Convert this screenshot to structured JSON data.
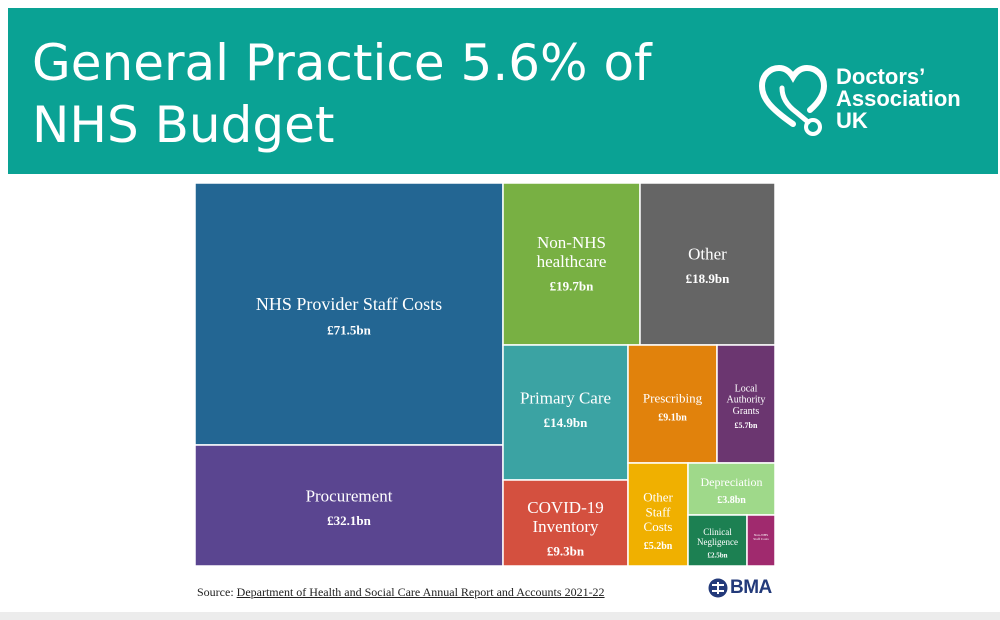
{
  "header": {
    "title_line1": "General Practice 5.6% of",
    "title_line2": "NHS Budget",
    "background": "#0aa294"
  },
  "logo": {
    "line1": "Doctors’",
    "line2": "Association",
    "line3": "UK",
    "icon": "heart-stethoscope-icon"
  },
  "chart_data": {
    "type": "treemap",
    "title": "",
    "unit": "£bn",
    "items": [
      {
        "label": "NHS Provider Staff Costs",
        "value": 71.5,
        "value_label": "£71.5bn",
        "color": "#236693"
      },
      {
        "label": "Procurement",
        "value": 32.1,
        "value_label": "£32.1bn",
        "color": "#5a4590"
      },
      {
        "label": "Non-NHS healthcare",
        "value": 19.7,
        "value_label": "£19.7bn",
        "color": "#78b043"
      },
      {
        "label": "Other",
        "value": 18.9,
        "value_label": "£18.9bn",
        "color": "#656565"
      },
      {
        "label": "Primary Care",
        "value": 14.9,
        "value_label": "£14.9bn",
        "color": "#3ba3a3"
      },
      {
        "label": "COVID-19 Inventory",
        "value": 9.3,
        "value_label": "£9.3bn",
        "color": "#d4503f"
      },
      {
        "label": "Prescribing",
        "value": 9.1,
        "value_label": "£9.1bn",
        "color": "#e1820c"
      },
      {
        "label": "Local Authority Grants",
        "value": 5.7,
        "value_label": "£5.7bn",
        "color": "#6b3670"
      },
      {
        "label": "Other Staff Costs",
        "value": 5.2,
        "value_label": "£5.2bn",
        "color": "#f0b000"
      },
      {
        "label": "Depreciation",
        "value": 3.8,
        "value_label": "£3.8bn",
        "color": "#9fd98a"
      },
      {
        "label": "Clinical Negligence",
        "value": 2.5,
        "value_label": "£2.5bn",
        "color": "#1c8052"
      },
      {
        "label": "Non-NHS Staff Costs",
        "value": 1.0,
        "value_label": "",
        "color": "#a02a6e"
      }
    ]
  },
  "footer": {
    "source_prefix": "Source: ",
    "source_link": "Department of Health and Social Care Annual Report and Accounts 2021-22",
    "bma_text": "BMA",
    "bma_color": "#233a7a"
  }
}
